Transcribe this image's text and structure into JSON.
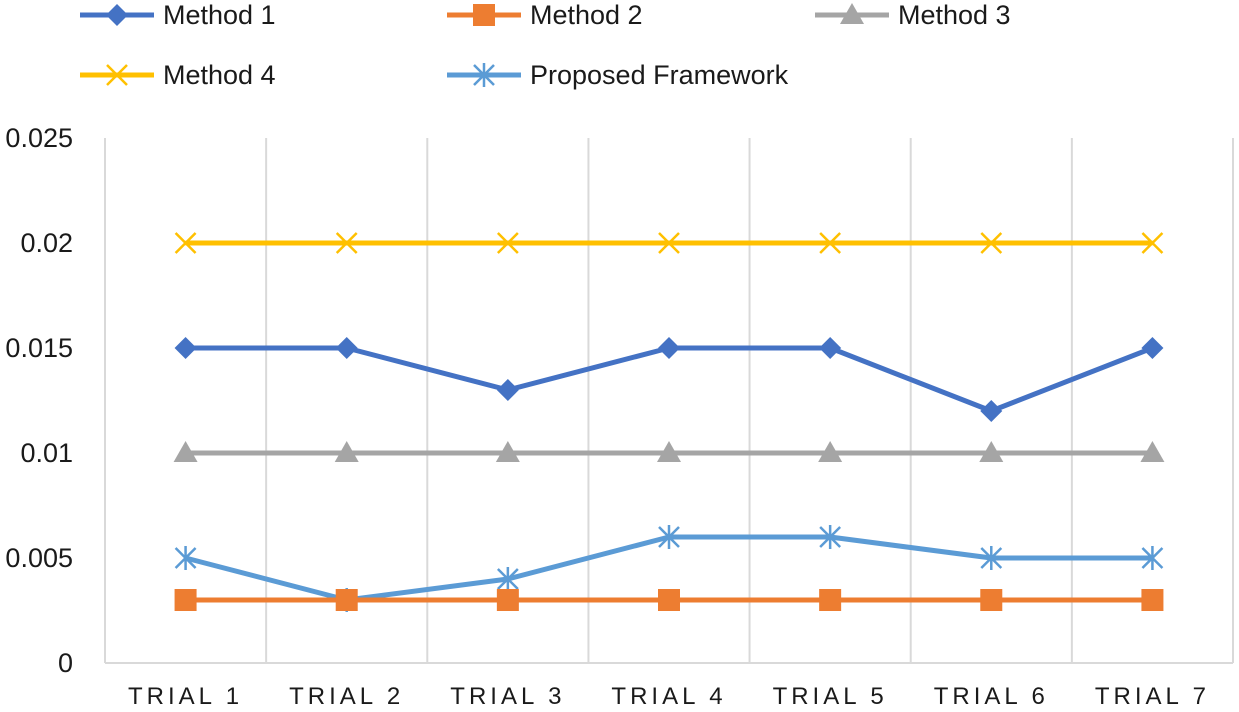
{
  "chart_data": {
    "type": "line",
    "title": "",
    "xlabel": "",
    "ylabel": "",
    "categories": [
      "TRIAL 1",
      "TRIAL 2",
      "TRIAL 3",
      "TRIAL 4",
      "TRIAL 5",
      "TRIAL 6",
      "TRIAL 7"
    ],
    "ylim": [
      0,
      0.025
    ],
    "yticks": [
      "0",
      "0.005",
      "0.01",
      "0.015",
      "0.02",
      "0.025"
    ],
    "grid": "vertical",
    "legend_position": "top",
    "series": [
      {
        "name": "Method 1",
        "color": "#4472C4",
        "marker": "diamond",
        "values": [
          0.015,
          0.015,
          0.013,
          0.015,
          0.015,
          0.012,
          0.015
        ]
      },
      {
        "name": "Method 2",
        "color": "#ED7D31",
        "marker": "square",
        "values": [
          0.003,
          0.003,
          0.003,
          0.003,
          0.003,
          0.003,
          0.003
        ]
      },
      {
        "name": "Method 3",
        "color": "#A5A5A5",
        "marker": "triangle",
        "values": [
          0.01,
          0.01,
          0.01,
          0.01,
          0.01,
          0.01,
          0.01
        ]
      },
      {
        "name": "Method 4",
        "color": "#FFC000",
        "marker": "x",
        "values": [
          0.02,
          0.02,
          0.02,
          0.02,
          0.02,
          0.02,
          0.02
        ]
      },
      {
        "name": "Proposed Framework",
        "color": "#5B9BD5",
        "marker": "star",
        "values": [
          0.005,
          0.003,
          0.004,
          0.006,
          0.006,
          0.005,
          0.005
        ]
      }
    ]
  }
}
